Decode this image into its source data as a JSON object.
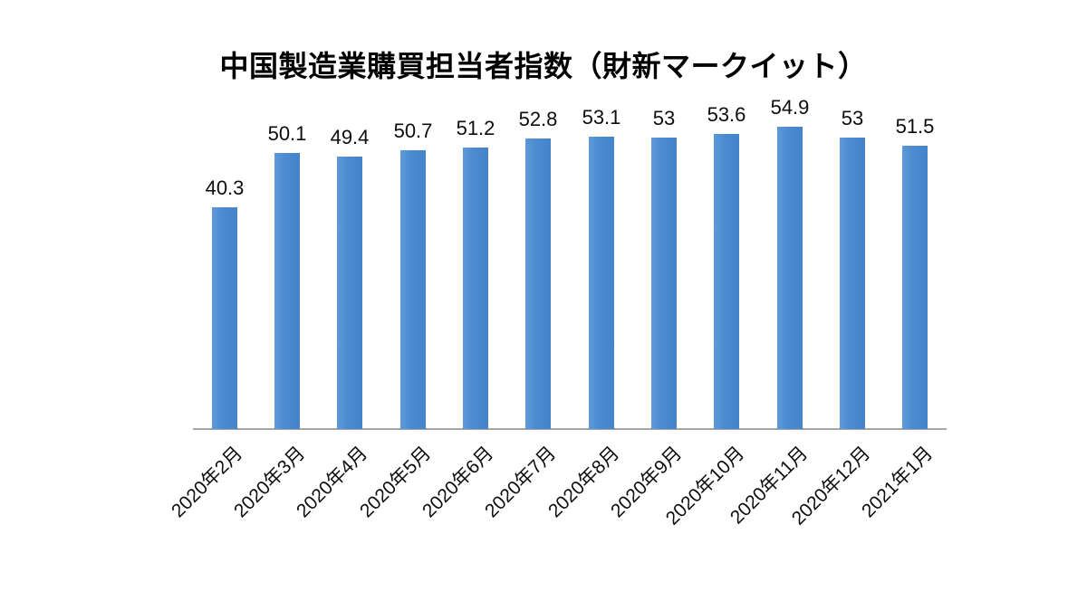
{
  "chart_data": {
    "type": "bar",
    "title": "中国製造業購買担当者指数（財新マークイット）",
    "categories": [
      "2020年2月",
      "2020年3月",
      "2020年4月",
      "2020年5月",
      "2020年6月",
      "2020年7月",
      "2020年8月",
      "2020年9月",
      "2020年10月",
      "2020年11月",
      "2020年12月",
      "2021年1月"
    ],
    "values": [
      40.3,
      50.1,
      49.4,
      50.7,
      51.2,
      52.8,
      53.1,
      53,
      53.6,
      54.9,
      53,
      51.5
    ],
    "data_labels": [
      "40.3",
      "50.1",
      "49.4",
      "50.7",
      "51.2",
      "52.8",
      "53.1",
      "53",
      "53.6",
      "54.9",
      "53",
      "51.5"
    ],
    "xlabel": "",
    "ylabel": "",
    "ylim": [
      0,
      62
    ],
    "grid": "off",
    "legend": "none",
    "y_axis_visible": false,
    "x_tick_rotation_deg": 45,
    "bar_color": "#4d8bd1",
    "bar_color_light_edge": "#5e9ad8",
    "bar_color_dark_edge": "#4483ca",
    "axis_line_color": "#a6a6a6",
    "label_color": "#0d0d0d",
    "title_color": "#000000",
    "background_color": "#ffffff"
  }
}
